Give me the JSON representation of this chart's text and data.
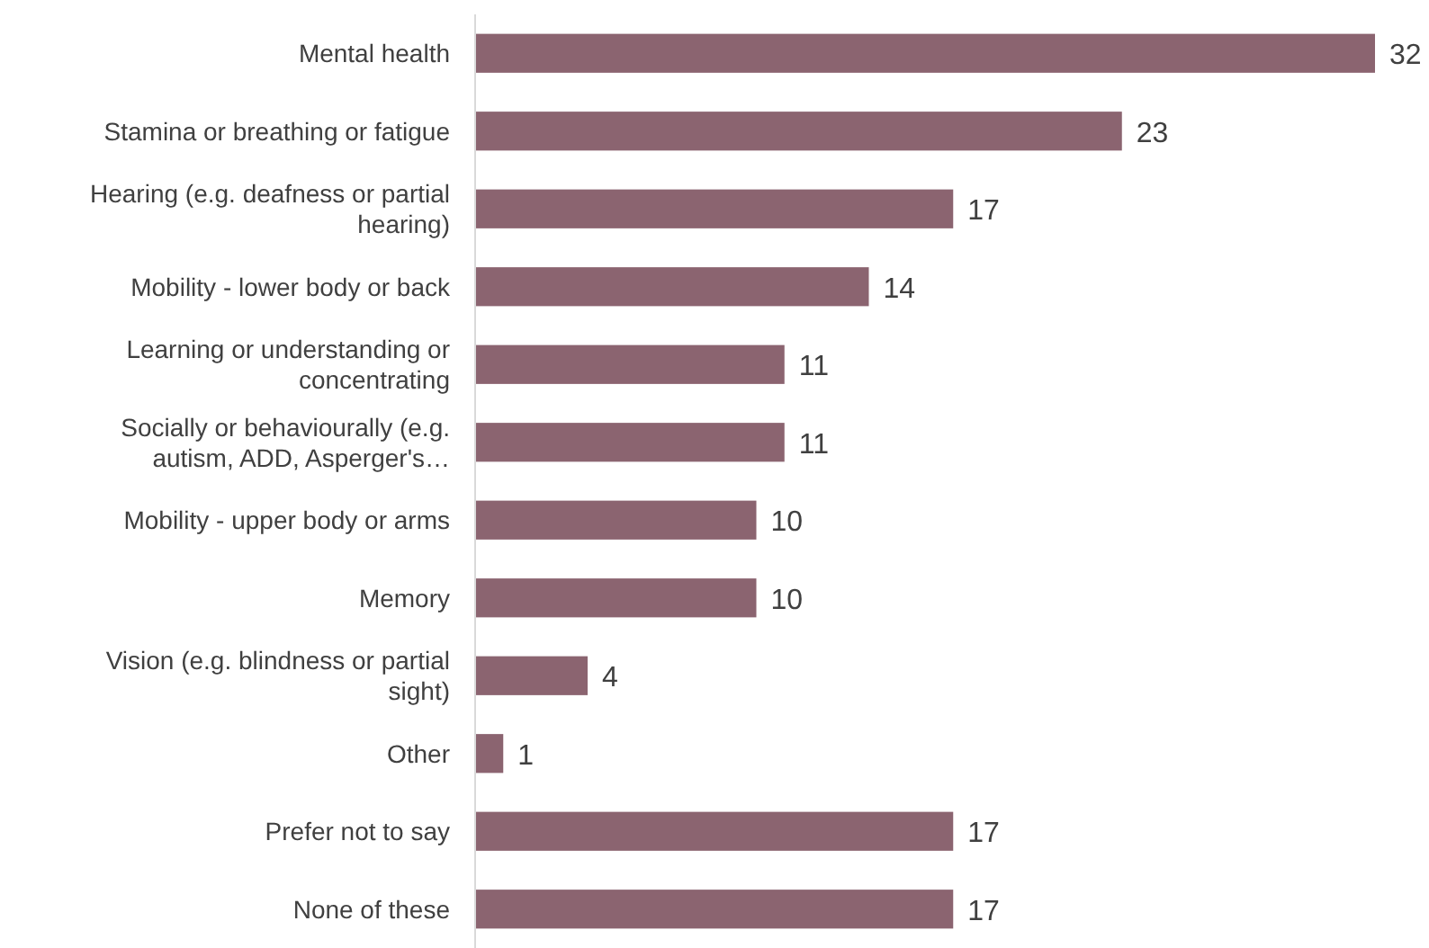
{
  "chart_data": {
    "type": "bar",
    "orientation": "horizontal",
    "data_labels": true,
    "categories": [
      "Mental health",
      "Stamina or breathing or fatigue",
      "Hearing (e.g. deafness or partial hearing)",
      "Mobility - lower body or back",
      "Learning or understanding or concentrating",
      "Socially or behaviourally (e.g. autism, ADD, Asperger's…",
      "Mobility - upper body or arms",
      "Memory",
      "Vision (e.g. blindness or partial sight)",
      "Other",
      "Prefer not to say",
      "None of these"
    ],
    "values": [
      32,
      23,
      17,
      14,
      11,
      11,
      10,
      10,
      4,
      1,
      17,
      17
    ],
    "color": "#8b6470"
  }
}
